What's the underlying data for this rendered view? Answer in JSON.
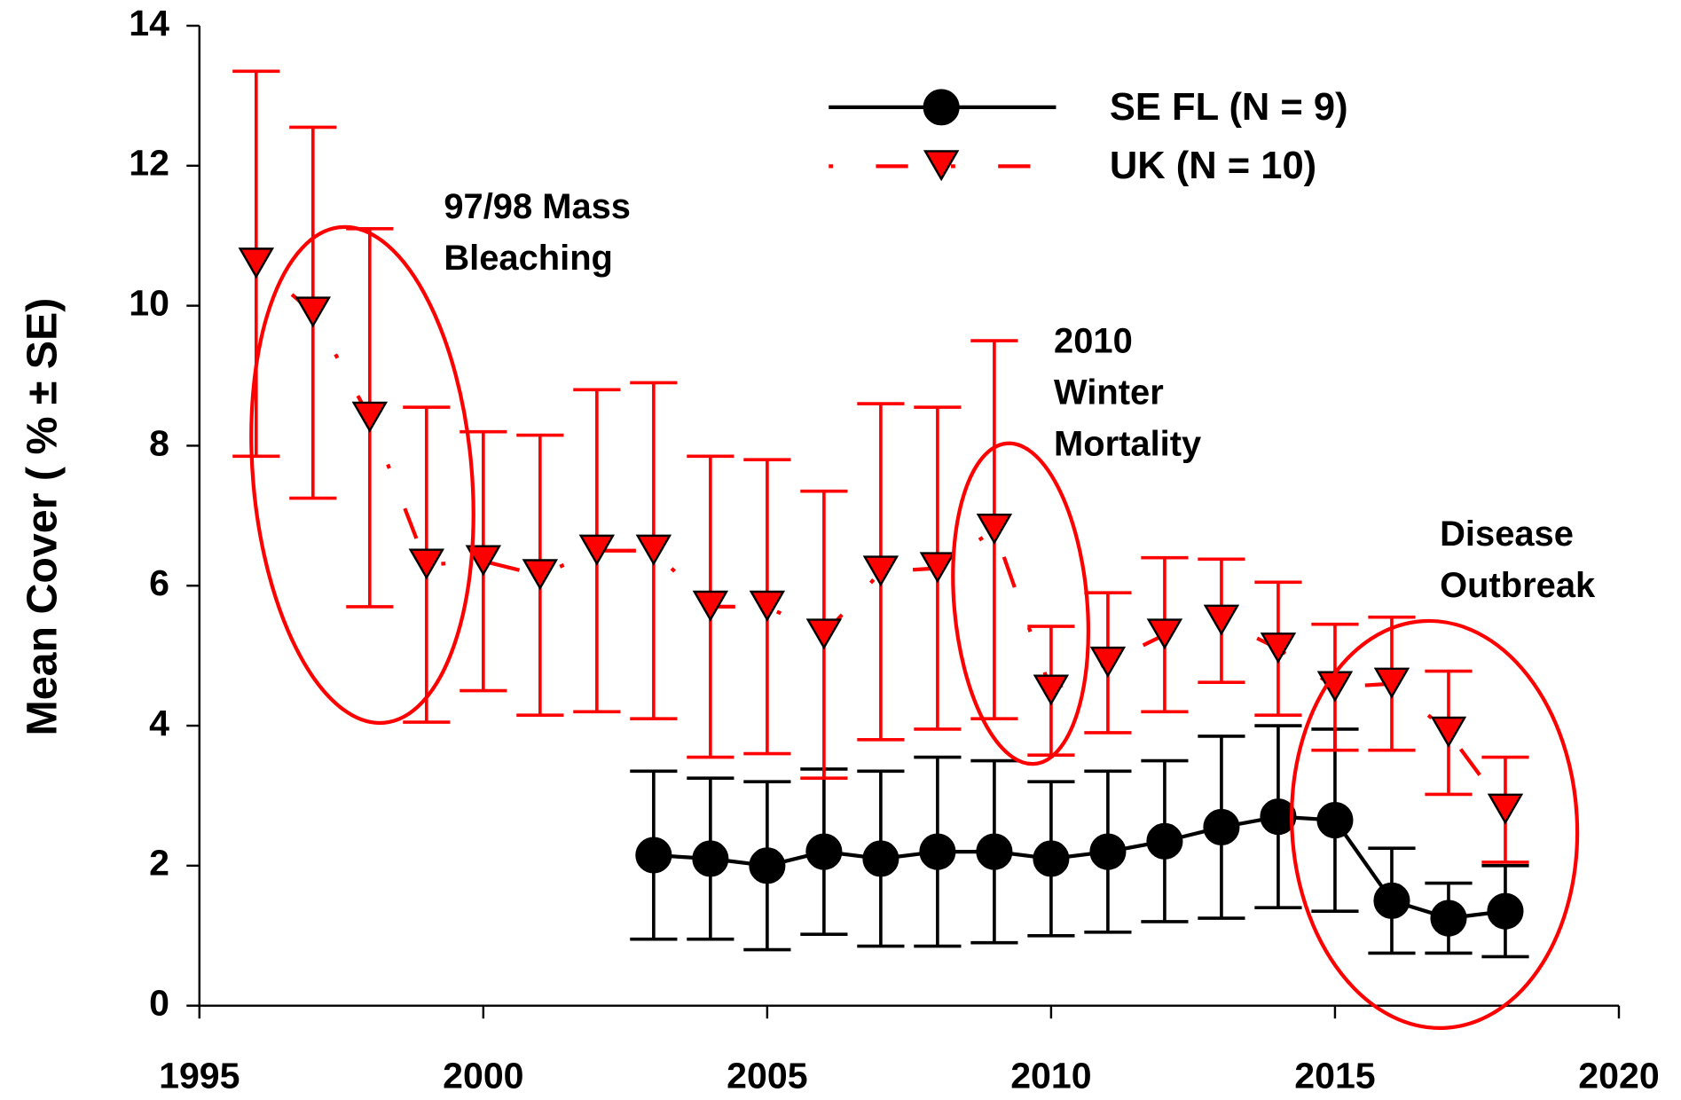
{
  "chart_data": {
    "type": "line",
    "ylabel": "Mean Cover ( % ±  SE)",
    "xlim": [
      1995,
      2020
    ],
    "xticks": [
      1995,
      2000,
      2005,
      2010,
      2015,
      2020
    ],
    "ylim": [
      0,
      14
    ],
    "yticks": [
      0,
      2,
      4,
      6,
      8,
      10,
      12,
      14
    ],
    "series": [
      {
        "name": "SE FL (N = 9)",
        "color": "#000000",
        "marker": "circle",
        "linestyle": "solid",
        "x": [
          2003,
          2004,
          2005,
          2006,
          2007,
          2008,
          2009,
          2010,
          2011,
          2012,
          2013,
          2014,
          2015,
          2016,
          2017,
          2018
        ],
        "values": [
          2.15,
          2.1,
          2.0,
          2.2,
          2.1,
          2.2,
          2.2,
          2.1,
          2.2,
          2.35,
          2.55,
          2.7,
          2.65,
          1.5,
          1.25,
          1.35
        ],
        "errors": [
          1.2,
          1.15,
          1.2,
          1.18,
          1.25,
          1.35,
          1.3,
          1.1,
          1.15,
          1.15,
          1.3,
          1.3,
          1.3,
          0.75,
          0.5,
          0.65
        ]
      },
      {
        "name": "UK (N = 10)",
        "color": "#ff0000",
        "marker": "triangle-down",
        "linestyle": "dotted",
        "x": [
          1996,
          1997,
          1998,
          1999,
          2000,
          2001,
          2002,
          2003,
          2004,
          2005,
          2006,
          2007,
          2008,
          2009,
          2010,
          2011,
          2012,
          2013,
          2014,
          2015,
          2016,
          2017,
          2018
        ],
        "values": [
          10.6,
          9.9,
          8.4,
          6.3,
          6.35,
          6.15,
          6.5,
          6.5,
          5.7,
          5.7,
          5.3,
          6.2,
          6.25,
          6.8,
          4.5,
          4.9,
          5.3,
          5.5,
          5.1,
          4.55,
          4.6,
          3.9,
          2.8
        ],
        "errors": [
          2.75,
          2.65,
          2.7,
          2.25,
          1.85,
          2.0,
          2.3,
          2.4,
          2.15,
          2.1,
          2.05,
          2.4,
          2.3,
          2.7,
          0.92,
          1.0,
          1.1,
          0.88,
          0.95,
          0.9,
          0.95,
          0.88,
          0.75
        ]
      }
    ],
    "annotations": [
      {
        "lines": [
          "97/98 Mass",
          "Bleaching"
        ]
      },
      {
        "lines": [
          "2010",
          "Winter",
          "Mortality"
        ]
      },
      {
        "lines": [
          "Disease",
          "Outbreak"
        ]
      }
    ]
  }
}
